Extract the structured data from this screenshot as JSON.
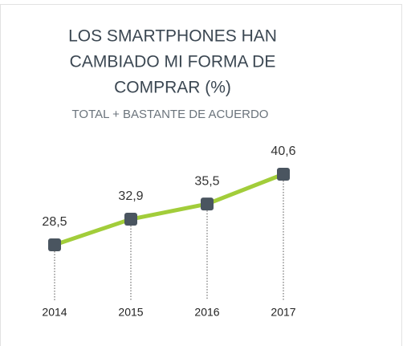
{
  "chart_data": {
    "type": "line",
    "title": [
      "LOS SMARTPHONES HAN",
      "CAMBIADO MI FORMA DE",
      "COMPRAR (%)"
    ],
    "subtitle": "TOTAL + BASTANTE DE ACUERDO",
    "categories": [
      "2014",
      "2015",
      "2016",
      "2017"
    ],
    "values": [
      28.5,
      32.9,
      35.5,
      40.6
    ],
    "value_labels": [
      "28,5",
      "32,9",
      "35,5",
      "40,6"
    ],
    "color": "#a2cd3a",
    "marker_color": "#4a5560"
  }
}
